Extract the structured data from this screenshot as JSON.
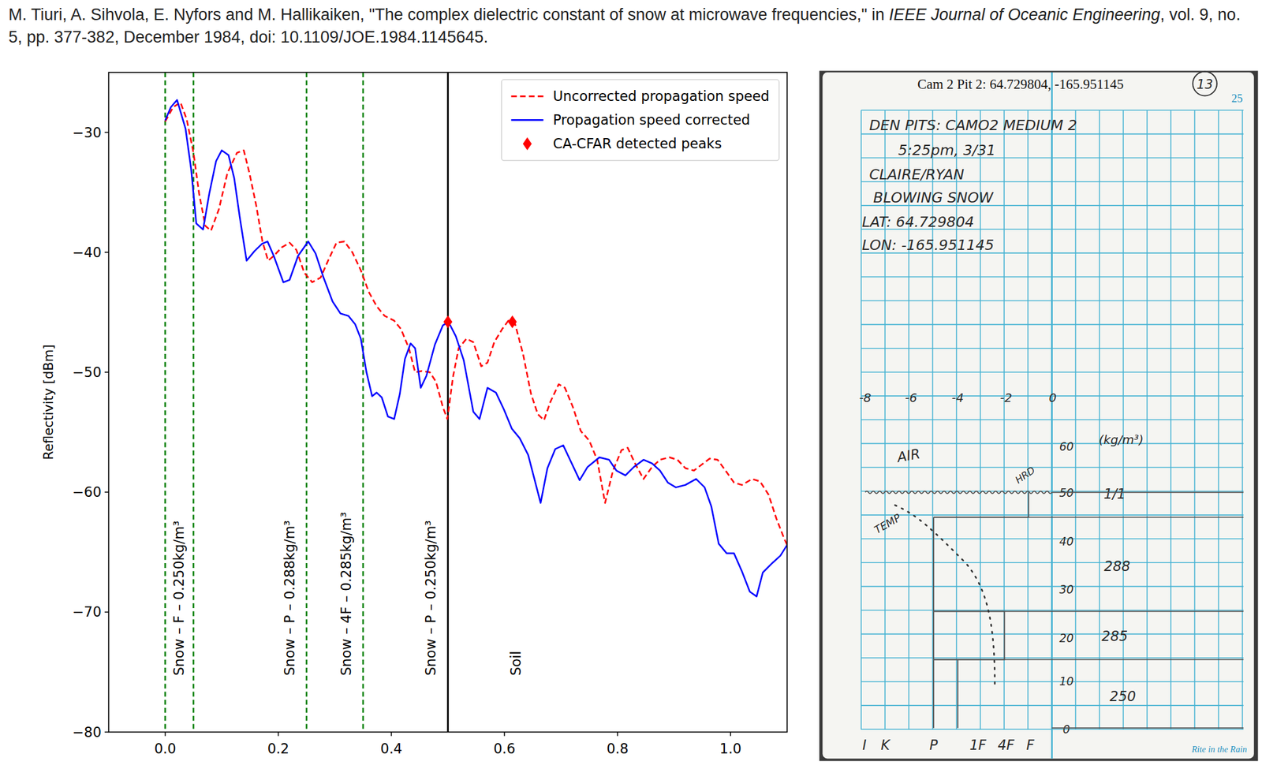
{
  "citation": {
    "authors": "M. Tiuri, A. Sihvola, E. Nyfors and M. Hallikaiken,",
    "title": "\"The complex dielectric constant of snow at microwave frequencies,\" in",
    "journal": "IEEE Journal of Oceanic Engineering",
    "details": ", vol. 9, no. 5, pp. 377-382, December 1984, doi: 10.1109/JOE.1984.1145645."
  },
  "chart_data": {
    "type": "line",
    "y_label": "Reflectivity [dBm]",
    "xlim": [
      -0.1,
      1.1
    ],
    "xticks": [
      {
        "value": 0,
        "label": "0.0"
      },
      {
        "value": 0.2,
        "label": "0.2"
      },
      {
        "value": 0.4,
        "label": "0.4"
      },
      {
        "value": 0.6,
        "label": "0.6"
      },
      {
        "value": 0.8,
        "label": "0.8"
      },
      {
        "value": 1,
        "label": "1.0"
      }
    ],
    "ylim": [
      -80,
      -25
    ],
    "yticks": [
      {
        "value": -80,
        "label": "−80"
      },
      {
        "value": -70,
        "label": "−70"
      },
      {
        "value": -60,
        "label": "−60"
      },
      {
        "value": -50,
        "label": "−50"
      },
      {
        "value": -40,
        "label": "−40"
      },
      {
        "value": -30,
        "label": "−30"
      }
    ],
    "legend": "upper right",
    "series": [
      {
        "name": "Uncorrected propagation speed",
        "type": "line",
        "color": "#ff0000",
        "line_style": "dashed",
        "x": [
          0,
          0.014,
          0.027,
          0.038,
          0.05,
          0.06,
          0.071,
          0.081,
          0.095,
          0.11,
          0.127,
          0.139,
          0.149,
          0.161,
          0.172,
          0.182,
          0.192,
          0.206,
          0.22,
          0.232,
          0.246,
          0.26,
          0.275,
          0.289,
          0.303,
          0.317,
          0.331,
          0.346,
          0.36,
          0.374,
          0.388,
          0.405,
          0.417,
          0.431,
          0.442,
          0.454,
          0.468,
          0.479,
          0.491,
          0.499,
          0.509,
          0.519,
          0.533,
          0.545,
          0.559,
          0.57,
          0.582,
          0.596,
          0.607,
          0.619,
          0.633,
          0.647,
          0.659,
          0.67,
          0.681,
          0.696,
          0.707,
          0.721,
          0.735,
          0.75,
          0.764,
          0.778,
          0.792,
          0.807,
          0.818,
          0.832,
          0.846,
          0.861,
          0.875,
          0.892,
          0.906,
          0.92,
          0.935,
          0.949,
          0.963,
          0.977,
          0.991,
          1.006,
          1.02,
          1.038,
          1.052,
          1.067,
          1.081,
          1.095,
          1.1
        ],
        "values": [
          -29.1,
          -27.9,
          -27.5,
          -28.9,
          -31.7,
          -35.1,
          -37.8,
          -38.2,
          -36.4,
          -33.4,
          -31.7,
          -31.5,
          -33.4,
          -36.1,
          -39.1,
          -40.7,
          -40.3,
          -39.6,
          -39.2,
          -39.8,
          -41.7,
          -42.5,
          -42.1,
          -40.6,
          -39.2,
          -39.1,
          -40.0,
          -41.5,
          -43.3,
          -44.5,
          -45.3,
          -45.7,
          -46.4,
          -48.0,
          -50.0,
          -49.9,
          -50.0,
          -50.8,
          -52.9,
          -53.9,
          -50.4,
          -48.0,
          -47.2,
          -47.5,
          -49.5,
          -49.2,
          -47.5,
          -46.4,
          -45.7,
          -46.0,
          -48.5,
          -51.8,
          -53.5,
          -54.0,
          -52.5,
          -51.0,
          -51.3,
          -52.9,
          -54.9,
          -55.7,
          -57.3,
          -60.9,
          -58.2,
          -56.5,
          -56.3,
          -57.7,
          -58.9,
          -57.9,
          -57.3,
          -57.1,
          -57.3,
          -58.0,
          -58.2,
          -57.7,
          -57.2,
          -57.3,
          -58.2,
          -59.2,
          -59.4,
          -58.9,
          -59.1,
          -60.2,
          -62.2,
          -63.9,
          -64.4
        ]
      },
      {
        "name": "Propagation speed corrected",
        "type": "line",
        "color": "#0000ff",
        "line_style": "solid",
        "x": [
          0,
          0.01,
          0.021,
          0.036,
          0.046,
          0.055,
          0.067,
          0.078,
          0.09,
          0.1,
          0.112,
          0.122,
          0.132,
          0.144,
          0.158,
          0.171,
          0.181,
          0.192,
          0.209,
          0.22,
          0.235,
          0.253,
          0.266,
          0.28,
          0.296,
          0.31,
          0.324,
          0.336,
          0.346,
          0.356,
          0.366,
          0.374,
          0.383,
          0.394,
          0.405,
          0.415,
          0.424,
          0.434,
          0.442,
          0.452,
          0.462,
          0.477,
          0.491,
          0.501,
          0.514,
          0.528,
          0.545,
          0.556,
          0.57,
          0.585,
          0.599,
          0.613,
          0.627,
          0.642,
          0.653,
          0.664,
          0.676,
          0.69,
          0.704,
          0.718,
          0.733,
          0.747,
          0.768,
          0.785,
          0.798,
          0.814,
          0.829,
          0.846,
          0.861,
          0.875,
          0.889,
          0.903,
          0.92,
          0.939,
          0.954,
          0.966,
          0.979,
          0.993,
          1.006,
          1.02,
          1.034,
          1.046,
          1.057,
          1.074,
          1.088,
          1.1
        ],
        "values": [
          -29.0,
          -27.9,
          -27.3,
          -29.7,
          -33.1,
          -37.6,
          -38.1,
          -35.1,
          -32.4,
          -31.5,
          -31.9,
          -33.8,
          -37.1,
          -40.7,
          -39.9,
          -39.3,
          -39.1,
          -40.3,
          -42.5,
          -42.3,
          -40.3,
          -39.1,
          -40.1,
          -42.1,
          -44.1,
          -45.1,
          -45.3,
          -46.0,
          -47.2,
          -50.0,
          -52.0,
          -51.7,
          -52.1,
          -53.7,
          -53.9,
          -51.8,
          -48.9,
          -47.6,
          -48.0,
          -51.3,
          -50.3,
          -47.7,
          -46.1,
          -45.8,
          -47.0,
          -49.0,
          -53.3,
          -53.9,
          -51.3,
          -51.7,
          -53.1,
          -54.7,
          -55.5,
          -56.9,
          -58.9,
          -60.9,
          -58.0,
          -56.4,
          -56.1,
          -57.5,
          -59.0,
          -57.9,
          -57.1,
          -57.3,
          -58.2,
          -58.6,
          -57.9,
          -57.3,
          -57.6,
          -58.2,
          -59.2,
          -59.6,
          -59.4,
          -58.9,
          -59.6,
          -61.2,
          -64.3,
          -65.1,
          -65.1,
          -66.6,
          -68.3,
          -68.7,
          -66.7,
          -65.9,
          -65.3,
          -64.4
        ]
      },
      {
        "name": "CA-CFAR detected peaks",
        "type": "scatter",
        "color": "#ff0000",
        "marker": "diamond",
        "x": [
          0.5,
          0.614
        ],
        "values": [
          -45.8,
          -45.8
        ]
      }
    ],
    "vlines": [
      {
        "x": 0,
        "color": "#008000",
        "line_style": "dashed"
      },
      {
        "x": 0.05,
        "color": "#008000",
        "line_style": "dashed"
      },
      {
        "x": 0.25,
        "color": "#008000",
        "line_style": "dashed"
      },
      {
        "x": 0.35,
        "color": "#008000",
        "line_style": "dashed"
      },
      {
        "x": 0.5,
        "color": "#000000",
        "line_style": "solid"
      }
    ],
    "annotations": [
      {
        "text": "Snow – F – 0.250kg/m³",
        "x": 0.024,
        "y": -75.3
      },
      {
        "text": "Snow – P – 0.288kg/m³",
        "x": 0.22,
        "y": -75.3
      },
      {
        "text": "Snow – 4F – 0.285kg/m³",
        "x": 0.32,
        "y": -75.3
      },
      {
        "text": "Snow – P – 0.250kg/m³",
        "x": 0.47,
        "y": -75.3
      },
      {
        "text": "Soil",
        "x": 0.62,
        "y": -75.3
      }
    ]
  },
  "notebook": {
    "header": "Cam 2 Pit 2: 64.729804, -165.951145",
    "page_number": "13",
    "sheet_number": "25",
    "notes": [
      "DEN PITS: CAMO2 MEDIUM 2",
      "5:25pm, 3/31",
      "CLAIRE/RYAN",
      "BLOWING SNOW",
      "LAT: 64.729804",
      "LON: -165.951145"
    ],
    "temp_axis": [
      "-8",
      "-6",
      "-4",
      "-2",
      "0"
    ],
    "height_axis": [
      "60",
      "50",
      "40",
      "30",
      "20",
      "10",
      "0"
    ],
    "density_unit": "(kg/m³)",
    "densities": [
      "1/1",
      "288",
      "285",
      "250"
    ],
    "air": "AIR",
    "temp": "TEMP",
    "hardness": "HRD",
    "hardness_scale": [
      "I",
      "K",
      "P",
      "1F",
      "4F",
      "F"
    ],
    "brand": "Rite in the Rain"
  }
}
